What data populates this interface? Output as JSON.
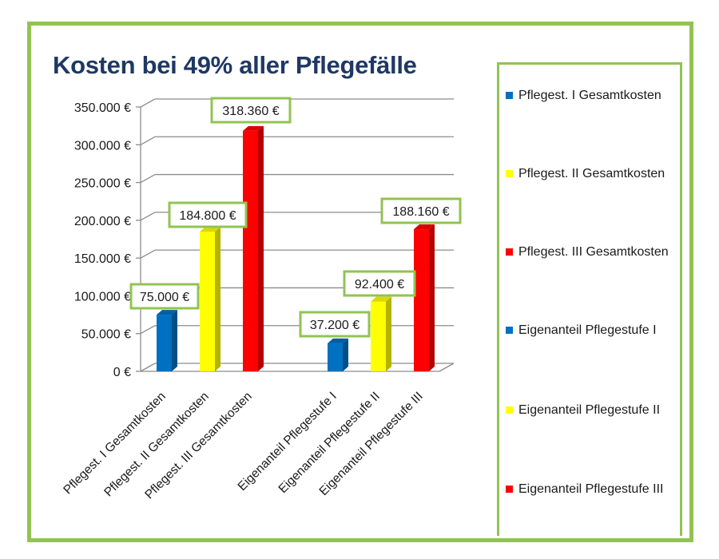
{
  "chart_data": {
    "type": "bar",
    "title": "Kosten bei 49% aller Pflegefälle",
    "categories": [
      "Pflegest. I  Gesamtkosten",
      "Pflegest. II Gesamtkosten",
      "Pflegest. III Gesamtkosten",
      "Eigenanteil  Pflegestufe I",
      "Eigenanteil Pflegestufe II",
      "Eigenanteil Pflegestufe III"
    ],
    "values": [
      75000,
      184800,
      318360,
      37200,
      92400,
      188160
    ],
    "data_labels": [
      "75.000 €",
      "184.800 €",
      "318.360 €",
      "37.200 €",
      "92.400 €",
      "188.160 €"
    ],
    "colors": [
      "#0070c0",
      "#ffff00",
      "#ff0000",
      "#0070c0",
      "#ffff00",
      "#ff0000"
    ],
    "ylim": [
      0,
      350000
    ],
    "y_ticks": [
      "0 €",
      "50.000 €",
      "100.000 €",
      "150.000 €",
      "200.000 €",
      "250.000 €",
      "300.000 €",
      "350.000 €"
    ],
    "grid": true,
    "style": "3d-columns",
    "legend_position": "right",
    "legend": [
      "Pflegest. I Gesamtkosten",
      "Pflegest. II Gesamtkosten",
      "Pflegest. III Gesamtkosten",
      "Eigenanteil  Pflegestufe I",
      "Eigenanteil Pflegestufe II",
      "Eigenanteil Pflegestufe III"
    ]
  },
  "colors": {
    "frame": "#92c353",
    "title": "#1f3864"
  }
}
